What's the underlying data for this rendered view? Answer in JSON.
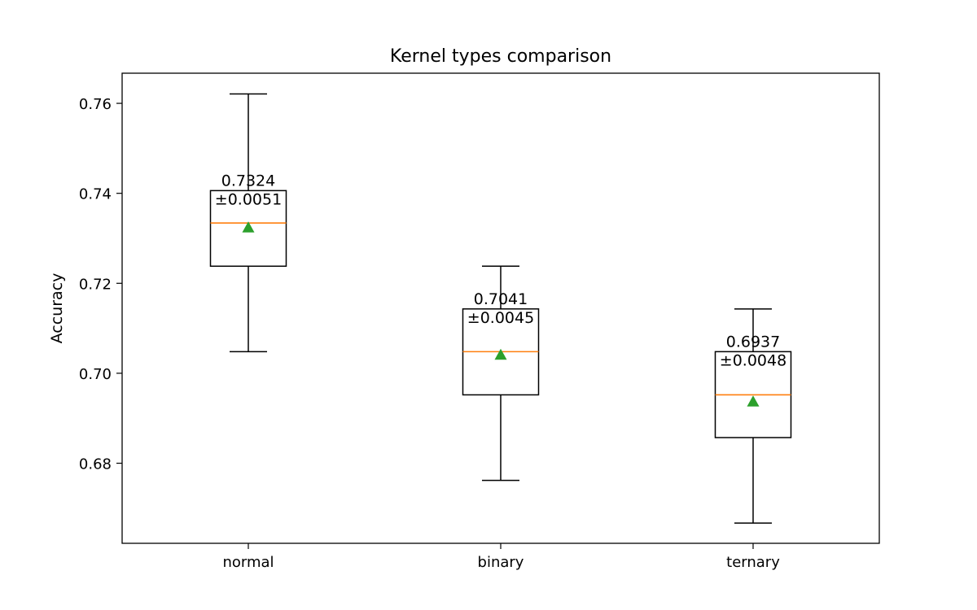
{
  "chart_data": {
    "type": "box",
    "title": "Kernel types comparison",
    "xlabel": "",
    "ylabel": "Accuracy",
    "ylim": [
      0.6622,
      0.7667
    ],
    "yticks": [
      0.68,
      0.7,
      0.72,
      0.74,
      0.76
    ],
    "ytick_labels": [
      "0.68",
      "0.70",
      "0.72",
      "0.74",
      "0.76"
    ],
    "categories": [
      "normal",
      "binary",
      "ternary"
    ],
    "boxes": [
      {
        "category": "normal",
        "whisker_low": 0.7048,
        "q1": 0.7238,
        "median": 0.7334,
        "q3": 0.7406,
        "whisker_high": 0.7621,
        "mean": 0.7324,
        "mean_label": "0.7324",
        "std_label": "±0.0051"
      },
      {
        "category": "binary",
        "whisker_low": 0.6762,
        "q1": 0.6952,
        "median": 0.7048,
        "q3": 0.7143,
        "whisker_high": 0.7238,
        "mean": 0.7041,
        "mean_label": "0.7041",
        "std_label": "±0.0045"
      },
      {
        "category": "ternary",
        "whisker_low": 0.6667,
        "q1": 0.6857,
        "median": 0.6952,
        "q3": 0.7048,
        "whisker_high": 0.7143,
        "mean": 0.6937,
        "mean_label": "0.6937",
        "std_label": "±0.0048"
      }
    ],
    "colors": {
      "box": "#000000",
      "median": "#ff7f0e",
      "mean_marker": "#2ca02c"
    },
    "grid": false,
    "legend": "none"
  }
}
